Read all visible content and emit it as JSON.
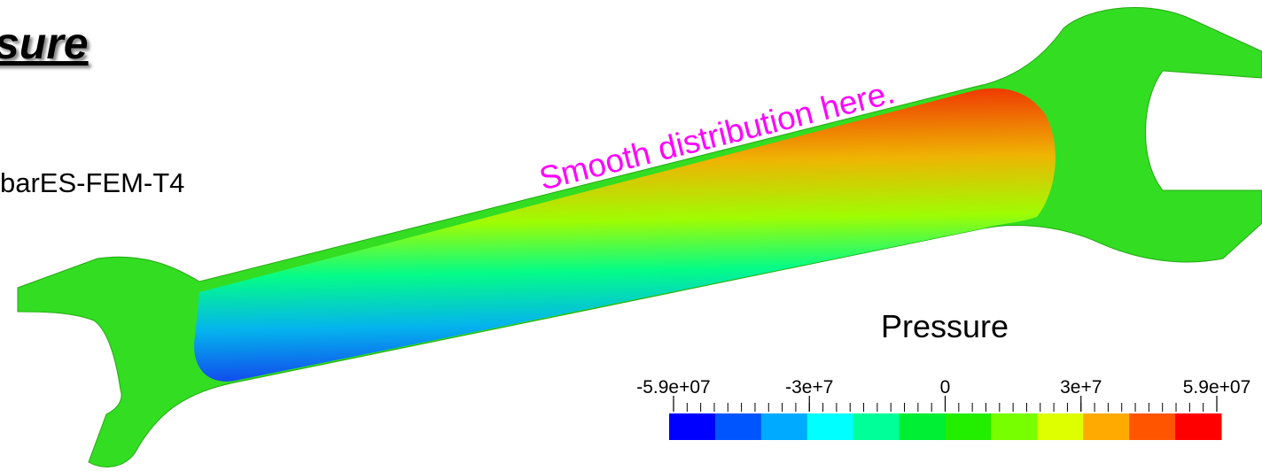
{
  "slide": {
    "title": "sure",
    "method": "barES-FEM-T4",
    "annotation": "Smooth distribution here."
  },
  "colorbar": {
    "title": "Pressure",
    "ticks": [
      "-5.9e+07",
      "-3e+7",
      "0",
      "3e+7",
      "5.9e+07"
    ],
    "colors": [
      "#0000ff",
      "#0055ff",
      "#00aaff",
      "#00ffff",
      "#00ff99",
      "#00ee33",
      "#22ee00",
      "#77ff00",
      "#ddff00",
      "#ffaa00",
      "#ff5500",
      "#ff0000"
    ]
  }
}
